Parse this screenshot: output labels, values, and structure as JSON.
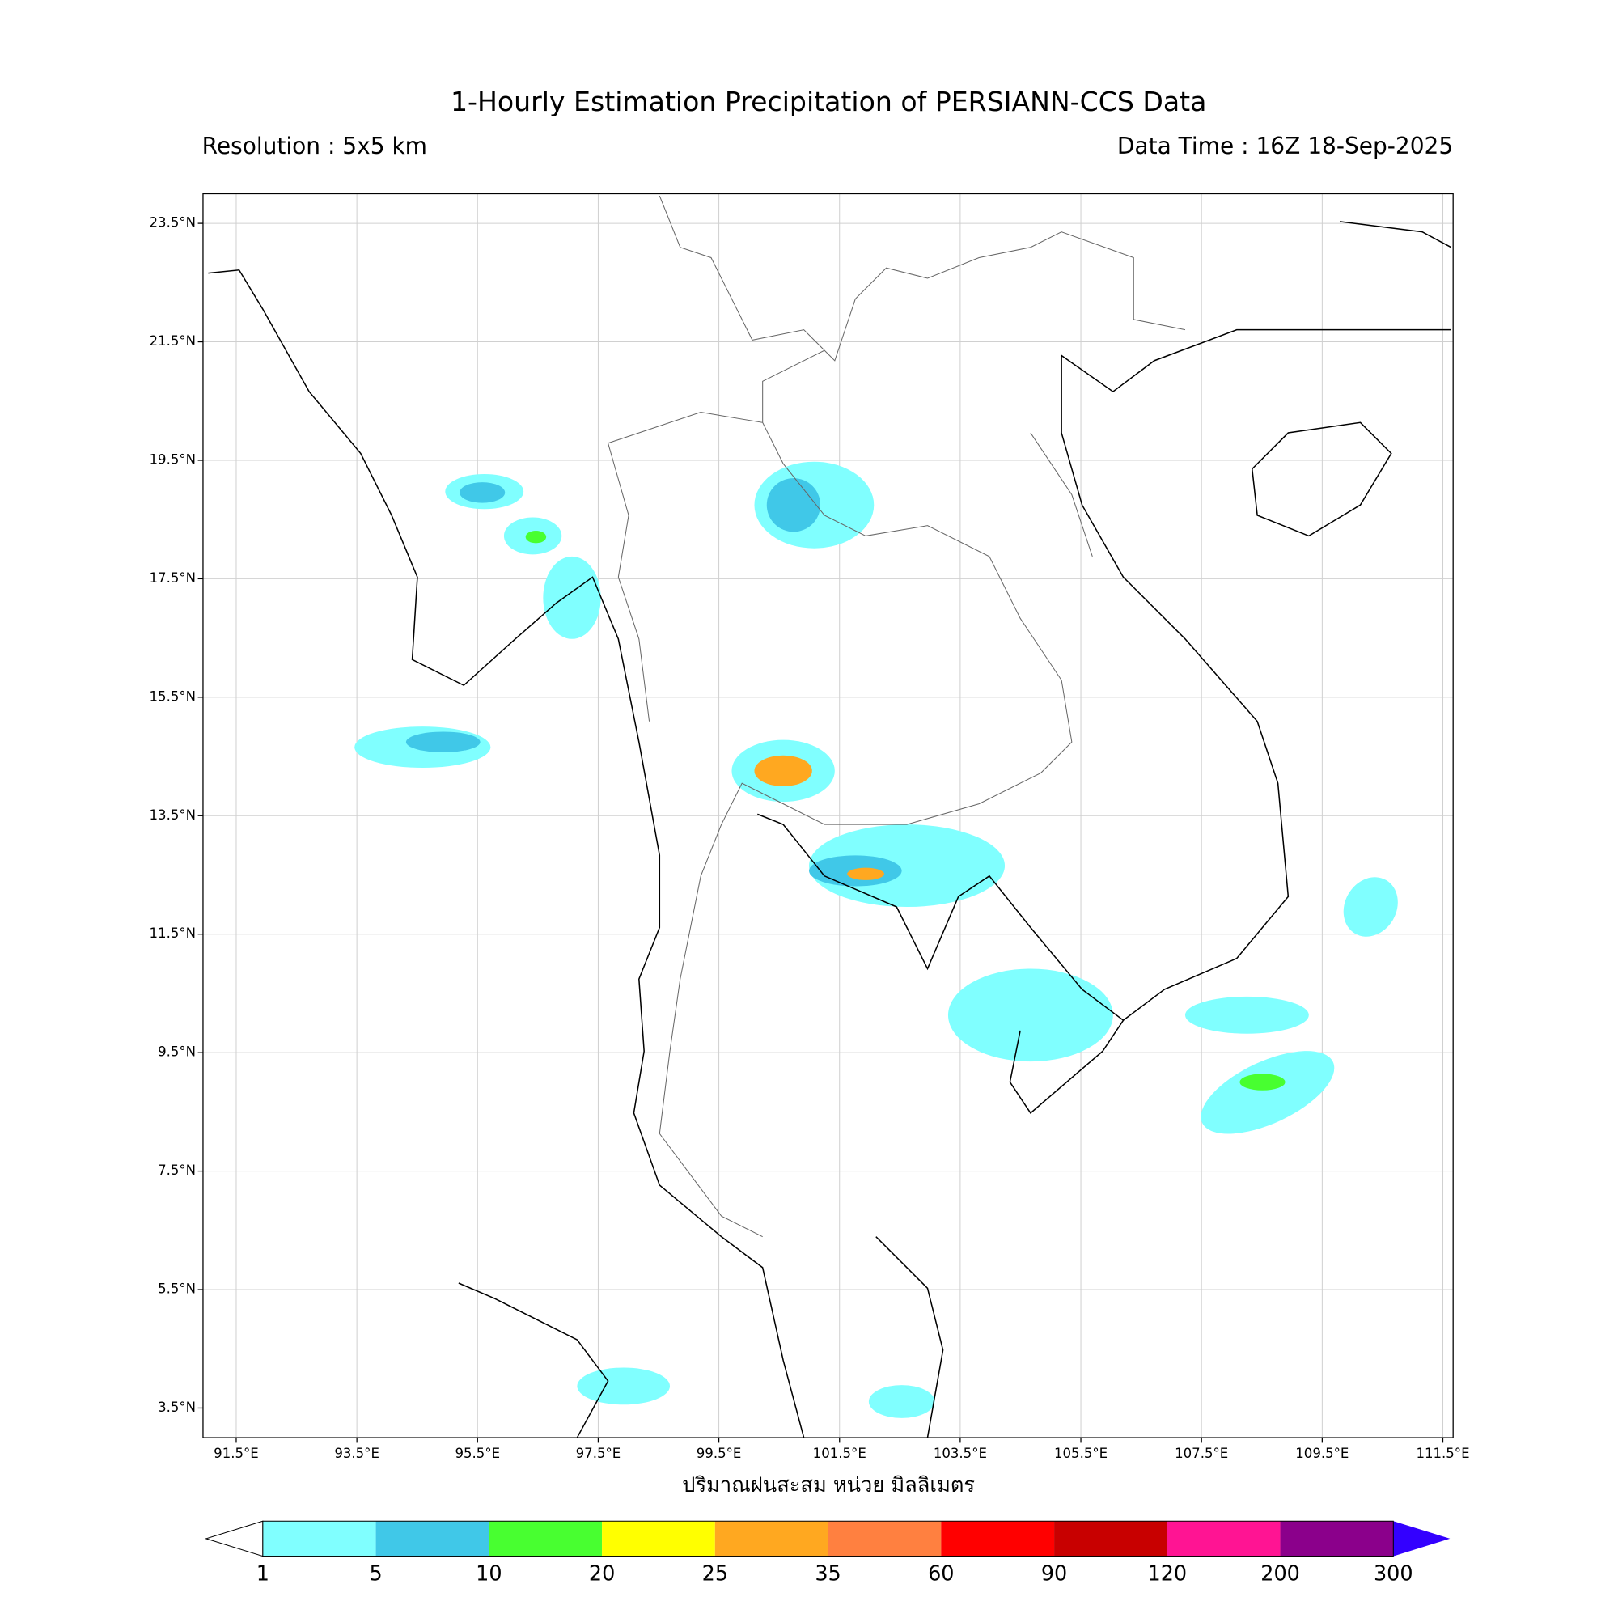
{
  "title": "1-Hourly Estimation Precipitation of PERSIANN-CCS Data",
  "resolution": "Resolution : 5x5 km",
  "data_time": "Data Time : 16Z 18-Sep-2025",
  "map": {
    "xlim": [
      90.95,
      111.67
    ],
    "ylim": [
      3.0,
      24.0
    ],
    "xticks": [
      {
        "value": 91.5,
        "label": "91.5°E"
      },
      {
        "value": 93.5,
        "label": "93.5°E"
      },
      {
        "value": 95.5,
        "label": "95.5°E"
      },
      {
        "value": 97.5,
        "label": "97.5°E"
      },
      {
        "value": 99.5,
        "label": "99.5°E"
      },
      {
        "value": 101.5,
        "label": "101.5°E"
      },
      {
        "value": 103.5,
        "label": "103.5°E"
      },
      {
        "value": 105.5,
        "label": "105.5°E"
      },
      {
        "value": 107.5,
        "label": "107.5°E"
      },
      {
        "value": 109.5,
        "label": "109.5°E"
      },
      {
        "value": 111.5,
        "label": "111.5°E"
      }
    ],
    "yticks": [
      {
        "value": 3.5,
        "label": "3.5°N"
      },
      {
        "value": 5.5,
        "label": "5.5°N"
      },
      {
        "value": 7.5,
        "label": "7.5°N"
      },
      {
        "value": 9.5,
        "label": "9.5°N"
      },
      {
        "value": 11.5,
        "label": "11.5°N"
      },
      {
        "value": 13.5,
        "label": "13.5°N"
      },
      {
        "value": 15.5,
        "label": "15.5°N"
      },
      {
        "value": 17.5,
        "label": "17.5°N"
      },
      {
        "value": 19.5,
        "label": "19.5°N"
      },
      {
        "value": 21.5,
        "label": "21.5°N"
      },
      {
        "value": 23.5,
        "label": "23.5°N"
      }
    ],
    "grid": true,
    "xlabel": "ปริมาณฝนสะสม หน่วย มิลลิเมตร"
  },
  "colorbar": {
    "levels": [
      1,
      5,
      10,
      20,
      25,
      35,
      60,
      90,
      120,
      200,
      300
    ],
    "colors": [
      "#80ffff",
      "#40c8e8",
      "#48ff30",
      "#ffff00",
      "#ffa820",
      "#ff8040",
      "#ff0000",
      "#c80000",
      "#ff1493",
      "#8b008b"
    ],
    "under_color": "#ffffff",
    "over_color": "#3300ff"
  }
}
